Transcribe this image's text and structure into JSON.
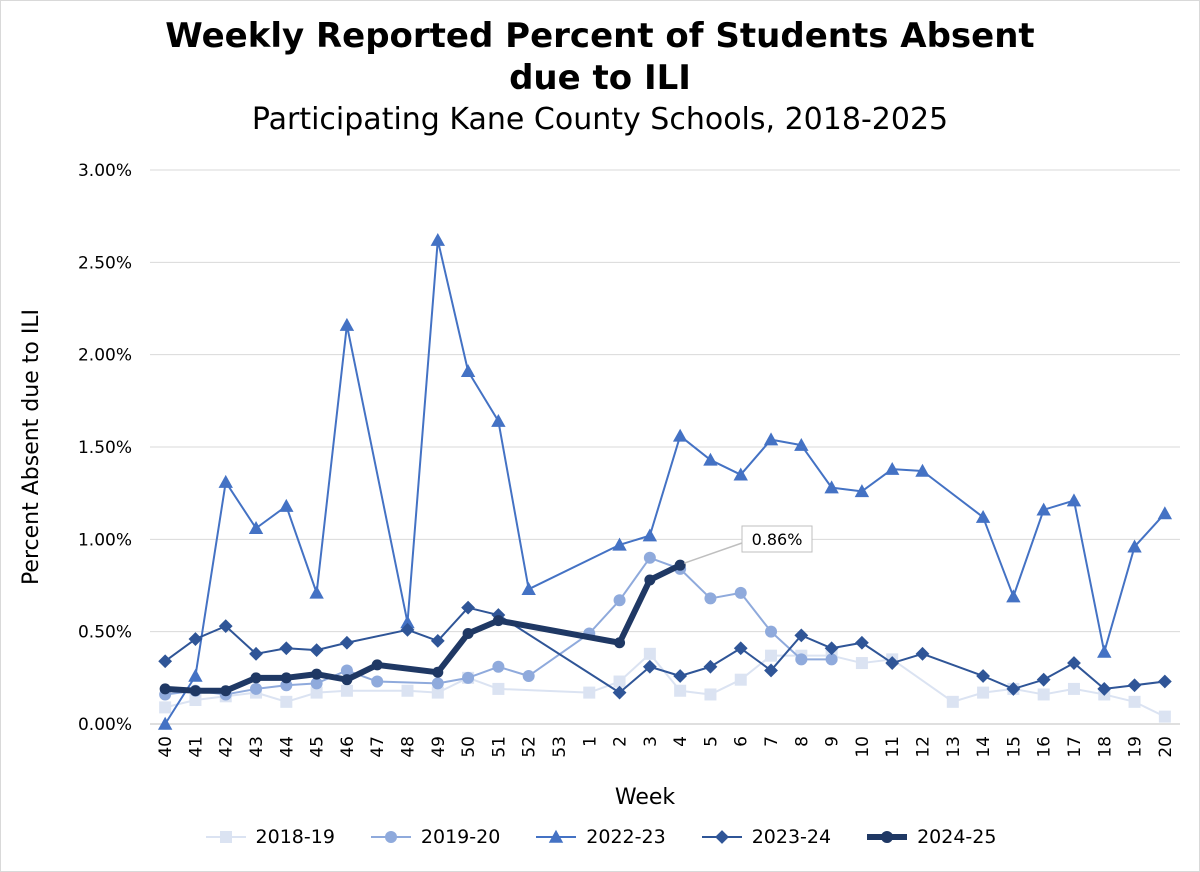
{
  "chart_data": {
    "type": "line",
    "title": "Weekly Reported Percent of Students Absent due to ILI",
    "title_line1": "Weekly Reported Percent of Students Absent",
    "title_line2": "due to ILI",
    "subtitle": "Participating Kane County Schools, 2018-2025",
    "xlabel": "Week",
    "ylabel": "Percent Absent due to ILI",
    "ylim": [
      0,
      3
    ],
    "yticks": [
      "0.00%",
      "0.50%",
      "1.00%",
      "1.50%",
      "2.00%",
      "2.50%",
      "3.00%"
    ],
    "categories": [
      "40",
      "41",
      "42",
      "43",
      "44",
      "45",
      "46",
      "47",
      "48",
      "49",
      "50",
      "51",
      "52",
      "53",
      "1",
      "2",
      "3",
      "4",
      "5",
      "6",
      "7",
      "8",
      "9",
      "10",
      "11",
      "12",
      "13",
      "14",
      "15",
      "16",
      "17",
      "18",
      "19",
      "20"
    ],
    "grid": true,
    "legend_position": "bottom",
    "annotation": {
      "label": "0.86%",
      "series": "2024-25",
      "category": "4",
      "value": 0.86
    },
    "series": [
      {
        "name": "2018-19",
        "color": "#dbe3f2",
        "marker": "square",
        "width": 2,
        "values": [
          0.09,
          0.13,
          0.15,
          0.17,
          0.12,
          0.17,
          0.18,
          null,
          0.18,
          0.17,
          0.25,
          0.19,
          null,
          null,
          0.17,
          0.23,
          0.38,
          0.18,
          0.16,
          0.24,
          0.37,
          0.37,
          0.37,
          0.33,
          0.35,
          null,
          0.12,
          0.17,
          0.19,
          0.16,
          0.19,
          0.16,
          0.12,
          0.04
        ]
      },
      {
        "name": "2019-20",
        "color": "#8faadc",
        "marker": "circle",
        "width": 2,
        "values": [
          0.16,
          0.18,
          0.16,
          0.19,
          0.21,
          0.22,
          0.29,
          0.23,
          null,
          0.22,
          0.25,
          0.31,
          0.26,
          null,
          0.49,
          0.67,
          0.9,
          0.84,
          0.68,
          0.71,
          0.5,
          0.35,
          0.35,
          null,
          null,
          null,
          null,
          null,
          null,
          null,
          null,
          null,
          null,
          null
        ]
      },
      {
        "name": "2022-23",
        "color": "#4472c4",
        "marker": "triangle",
        "width": 2,
        "values": [
          0.0,
          0.26,
          1.31,
          1.06,
          1.18,
          0.71,
          2.16,
          null,
          0.55,
          2.62,
          1.91,
          1.64,
          0.73,
          null,
          null,
          0.97,
          1.02,
          1.56,
          1.43,
          1.35,
          1.54,
          1.51,
          1.28,
          1.26,
          1.38,
          1.37,
          null,
          1.12,
          0.69,
          1.16,
          1.21,
          0.39,
          0.96,
          1.14
        ]
      },
      {
        "name": "2023-24",
        "color": "#2f5597",
        "marker": "diamond",
        "width": 2,
        "values": [
          0.34,
          0.46,
          0.53,
          0.38,
          0.41,
          0.4,
          0.44,
          null,
          0.51,
          0.45,
          0.63,
          0.59,
          null,
          null,
          null,
          0.17,
          0.31,
          0.26,
          0.31,
          0.41,
          0.29,
          0.48,
          0.41,
          0.44,
          0.33,
          0.38,
          null,
          0.26,
          0.19,
          0.24,
          0.33,
          0.19,
          0.21,
          0.23
        ]
      },
      {
        "name": "2024-25",
        "color": "#1f3864",
        "marker": "circle",
        "width": 6,
        "values": [
          0.19,
          0.18,
          0.18,
          0.25,
          0.25,
          0.27,
          0.24,
          0.32,
          null,
          0.28,
          0.49,
          0.56,
          null,
          null,
          null,
          0.44,
          0.78,
          0.86,
          null,
          null,
          null,
          null,
          null,
          null,
          null,
          null,
          null,
          null,
          null,
          null,
          null,
          null,
          null,
          null
        ]
      }
    ]
  }
}
